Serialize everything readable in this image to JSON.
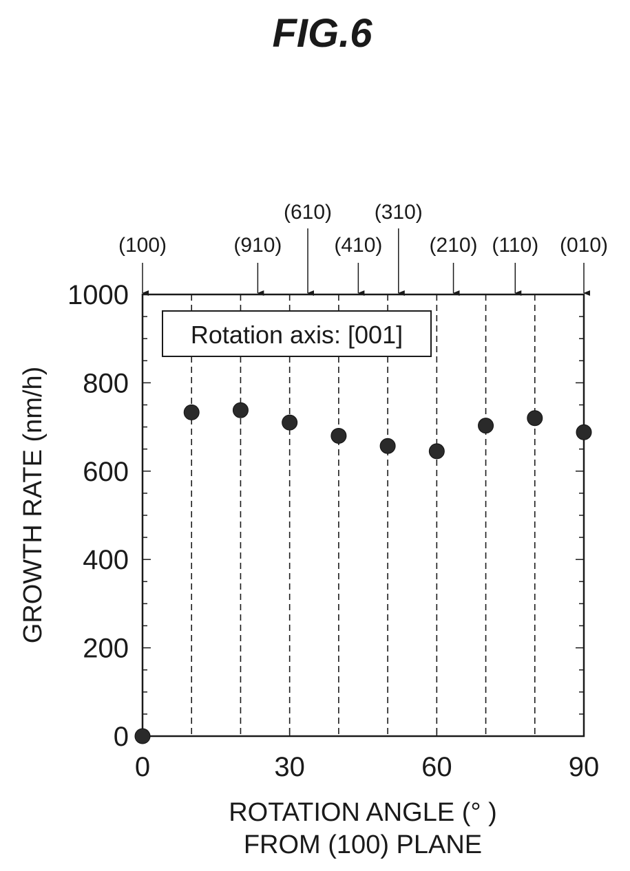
{
  "figure_title": "FIG.6",
  "chart_data": {
    "type": "scatter",
    "title": "",
    "xlabel_line1": "ROTATION ANGLE (°  )",
    "xlabel_line2": "FROM (100) PLANE",
    "ylabel": "GROWTH RATE (nm/h)",
    "xlim": [
      0,
      90
    ],
    "ylim": [
      0,
      1000
    ],
    "x_ticks": [
      0,
      30,
      60,
      90
    ],
    "x_tick_labels": [
      "0",
      "30",
      "60",
      "90"
    ],
    "y_ticks": [
      0,
      200,
      400,
      600,
      800,
      1000
    ],
    "y_tick_labels": [
      "0",
      "200",
      "400",
      "600",
      "800",
      "1000"
    ],
    "annotation": "Rotation axis: [001]",
    "dashed_gridlines_x": [
      10,
      20,
      30,
      40,
      50,
      60,
      70,
      80
    ],
    "points": [
      {
        "x": 0,
        "y": 0
      },
      {
        "x": 10,
        "y": 733
      },
      {
        "x": 20,
        "y": 738
      },
      {
        "x": 30,
        "y": 710
      },
      {
        "x": 40,
        "y": 680
      },
      {
        "x": 50,
        "y": 657
      },
      {
        "x": 60,
        "y": 645
      },
      {
        "x": 70,
        "y": 703
      },
      {
        "x": 80,
        "y": 720
      },
      {
        "x": 90,
        "y": 688
      }
    ],
    "crystal_planes": [
      {
        "label": "(100)",
        "angle": 0,
        "row": 2
      },
      {
        "label": "(910)",
        "angle": 23.5,
        "row": 2
      },
      {
        "label": "(610)",
        "angle": 33.7,
        "row": 1
      },
      {
        "label": "(410)",
        "angle": 44.0,
        "row": 2
      },
      {
        "label": "(310)",
        "angle": 52.2,
        "row": 1
      },
      {
        "label": "(210)",
        "angle": 63.4,
        "row": 2
      },
      {
        "label": "(110)",
        "angle": 76.0,
        "row": 2
      },
      {
        "label": "(010)",
        "angle": 90,
        "row": 2
      }
    ]
  }
}
